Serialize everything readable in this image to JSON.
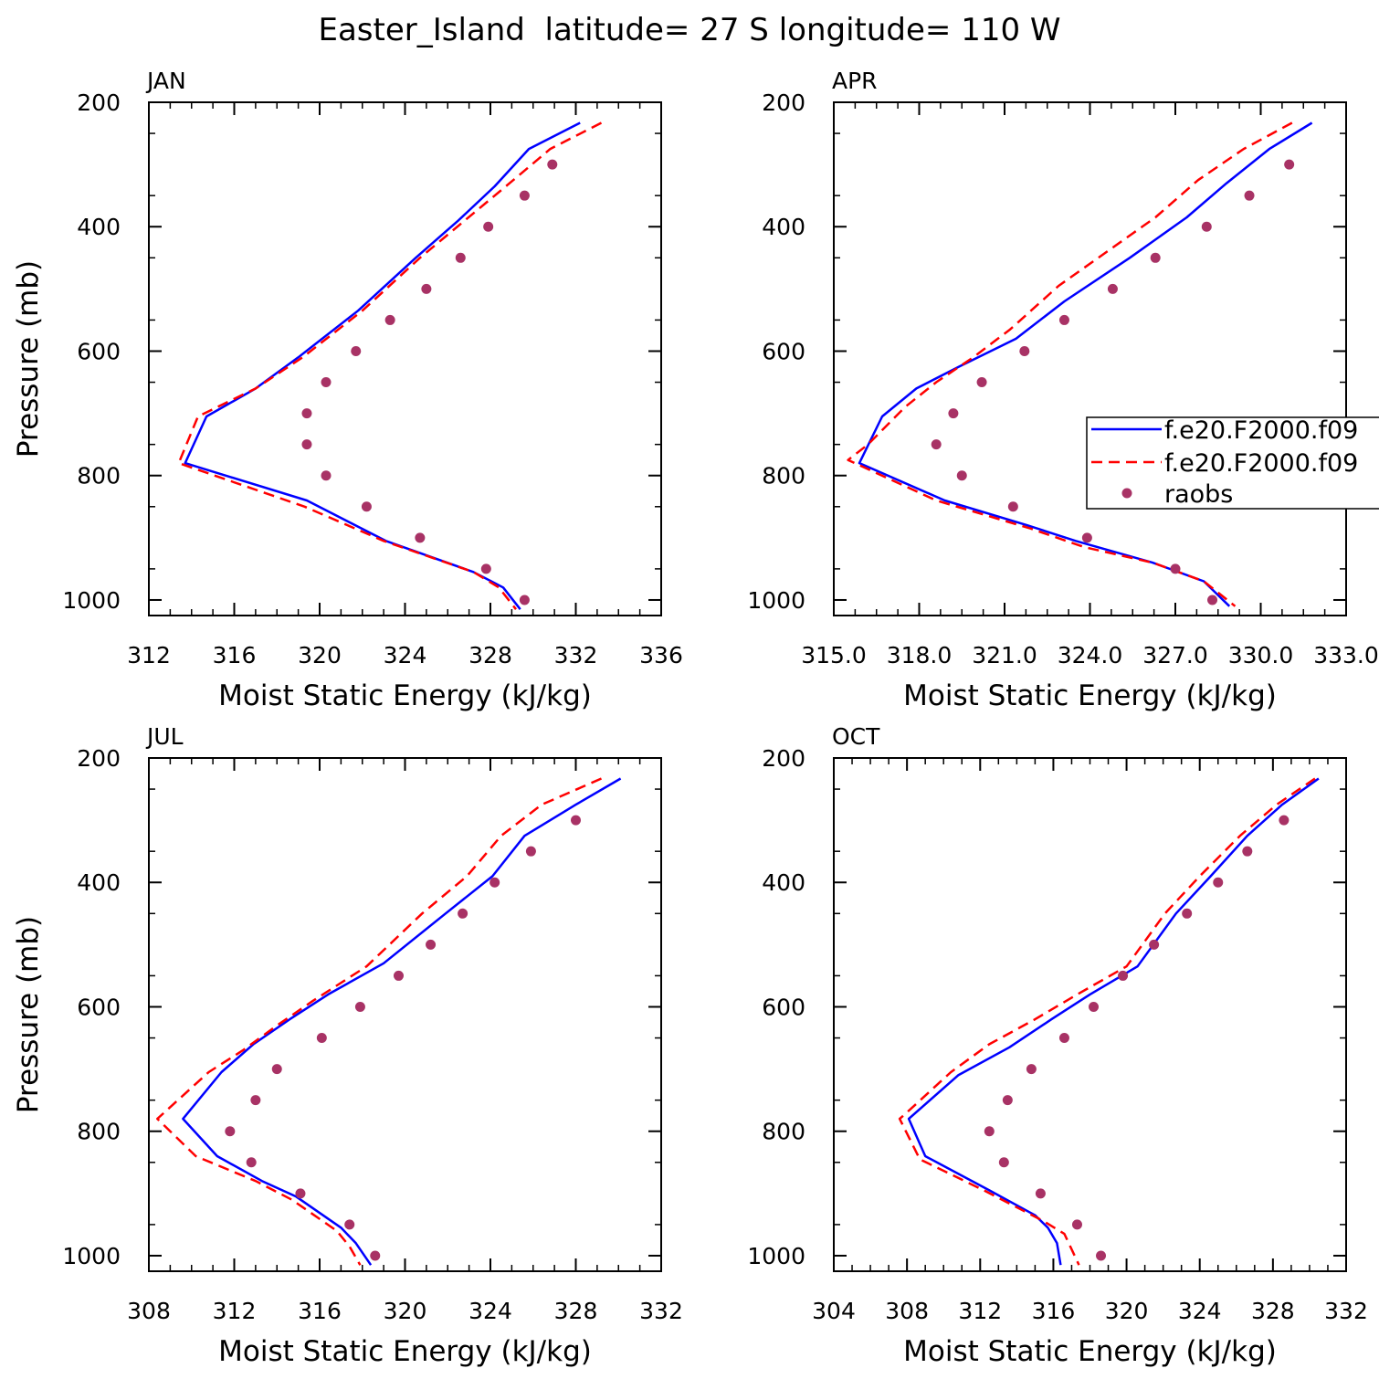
{
  "figure_title": "Easter_Island  latitude= 27 S longitude= 110 W",
  "colors": {
    "model1": "#0000ff",
    "model2": "#ff0000",
    "obs": "#a83265"
  },
  "legend": {
    "entries": [
      "f.e20.F2000.f09",
      "f.e20.F2000.f09",
      "raobs"
    ],
    "placement": "APR panel, right edge (clipped)"
  },
  "chart_data": [
    {
      "type": "line",
      "title": "JAN",
      "xlabel": "Moist Static Energy (kJ/kg)",
      "ylabel": "Pressure (mb)",
      "xlim": [
        312,
        336
      ],
      "xticks": [
        "312",
        "316",
        "320",
        "324",
        "328",
        "332",
        "336"
      ],
      "ylim": [
        1025,
        200
      ],
      "yticks": [
        "200",
        "400",
        "600",
        "800",
        "1000"
      ],
      "grid": false,
      "series": [
        {
          "name": "f.e20.F2000.f09",
          "style": "solid",
          "points": [
            [
              332.2,
              233
            ],
            [
              329.8,
              275
            ],
            [
              328.2,
              335
            ],
            [
              326.5,
              390
            ],
            [
              324.5,
              450
            ],
            [
              321.8,
              535
            ],
            [
              319.0,
              610
            ],
            [
              317.0,
              660
            ],
            [
              314.7,
              705
            ],
            [
              313.7,
              780
            ],
            [
              319.4,
              840
            ],
            [
              323.1,
              905
            ],
            [
              327.2,
              955
            ],
            [
              328.6,
              980
            ],
            [
              329.4,
              1015
            ]
          ]
        },
        {
          "name": "f.e20.F2000.f09",
          "style": "dashed",
          "points": [
            [
              333.2,
              233
            ],
            [
              330.8,
              275
            ],
            [
              328.9,
              330
            ],
            [
              326.8,
              390
            ],
            [
              324.7,
              450
            ],
            [
              322.0,
              535
            ],
            [
              319.2,
              610
            ],
            [
              317.0,
              660
            ],
            [
              314.3,
              705
            ],
            [
              313.4,
              780
            ],
            [
              319.3,
              850
            ],
            [
              323.0,
              905
            ],
            [
              327.2,
              955
            ],
            [
              328.4,
              980
            ],
            [
              329.2,
              1015
            ]
          ]
        },
        {
          "name": "raobs",
          "style": "dots",
          "points": [
            [
              330.9,
              300
            ],
            [
              329.6,
              350
            ],
            [
              327.9,
              400
            ],
            [
              326.6,
              450
            ],
            [
              325.0,
              500
            ],
            [
              323.3,
              550
            ],
            [
              321.7,
              600
            ],
            [
              320.3,
              650
            ],
            [
              319.4,
              700
            ],
            [
              319.4,
              750
            ],
            [
              320.3,
              800
            ],
            [
              322.2,
              850
            ],
            [
              324.7,
              900
            ],
            [
              327.8,
              950
            ],
            [
              329.6,
              1000
            ]
          ]
        }
      ]
    },
    {
      "type": "line",
      "title": "APR",
      "xlabel": "Moist Static Energy (kJ/kg)",
      "ylabel": "",
      "xlim": [
        315,
        333
      ],
      "xticks": [
        "315.0",
        "318.0",
        "321.0",
        "324.0",
        "327.0",
        "330.0",
        "333.0"
      ],
      "ylim": [
        1025,
        200
      ],
      "yticks": [
        "200",
        "400",
        "600",
        "800",
        "1000"
      ],
      "grid": false,
      "series": [
        {
          "name": "f.e20.F2000.f09",
          "style": "solid",
          "points": [
            [
              331.8,
              233
            ],
            [
              330.3,
              275
            ],
            [
              328.8,
              330
            ],
            [
              327.4,
              385
            ],
            [
              325.4,
              450
            ],
            [
              323.1,
              520
            ],
            [
              321.4,
              580
            ],
            [
              319.4,
              625
            ],
            [
              317.9,
              660
            ],
            [
              316.7,
              705
            ],
            [
              315.9,
              780
            ],
            [
              318.9,
              840
            ],
            [
              321.8,
              880
            ],
            [
              323.5,
              905
            ],
            [
              326.2,
              940
            ],
            [
              328.0,
              970
            ],
            [
              328.9,
              1010
            ]
          ]
        },
        {
          "name": "f.e20.F2000.f09",
          "style": "dashed",
          "points": [
            [
              331.1,
              233
            ],
            [
              329.4,
              275
            ],
            [
              327.8,
              325
            ],
            [
              326.3,
              385
            ],
            [
              324.6,
              440
            ],
            [
              322.9,
              495
            ],
            [
              321.2,
              565
            ],
            [
              319.9,
              610
            ],
            [
              318.6,
              650
            ],
            [
              317.5,
              690
            ],
            [
              316.2,
              750
            ],
            [
              315.5,
              775
            ],
            [
              318.6,
              840
            ],
            [
              321.9,
              885
            ],
            [
              323.8,
              915
            ],
            [
              326.2,
              940
            ],
            [
              328.0,
              970
            ],
            [
              329.1,
              1010
            ]
          ]
        },
        {
          "name": "raobs",
          "style": "dots",
          "points": [
            [
              331.0,
              300
            ],
            [
              329.6,
              350
            ],
            [
              328.1,
              400
            ],
            [
              326.3,
              450
            ],
            [
              324.8,
              500
            ],
            [
              323.1,
              550
            ],
            [
              321.7,
              600
            ],
            [
              320.2,
              650
            ],
            [
              319.2,
              700
            ],
            [
              318.6,
              750
            ],
            [
              319.5,
              800
            ],
            [
              321.3,
              850
            ],
            [
              323.9,
              900
            ],
            [
              327.0,
              950
            ],
            [
              328.3,
              1000
            ]
          ]
        }
      ]
    },
    {
      "type": "line",
      "title": "JUL",
      "xlabel": "Moist Static Energy (kJ/kg)",
      "ylabel": "Pressure (mb)",
      "xlim": [
        308,
        332
      ],
      "xticks": [
        "308",
        "312",
        "316",
        "320",
        "324",
        "328",
        "332"
      ],
      "ylim": [
        1025,
        200
      ],
      "yticks": [
        "200",
        "400",
        "600",
        "800",
        "1000"
      ],
      "grid": false,
      "series": [
        {
          "name": "f.e20.F2000.f09",
          "style": "solid",
          "points": [
            [
              330.1,
              233
            ],
            [
              328.0,
              275
            ],
            [
              325.6,
              325
            ],
            [
              324.1,
              390
            ],
            [
              321.9,
              450
            ],
            [
              319.0,
              530
            ],
            [
              316.4,
              580
            ],
            [
              314.6,
              620
            ],
            [
              312.9,
              660
            ],
            [
              311.4,
              705
            ],
            [
              309.6,
              780
            ],
            [
              311.2,
              840
            ],
            [
              313.3,
              880
            ],
            [
              314.9,
              905
            ],
            [
              317.0,
              955
            ],
            [
              317.7,
              980
            ],
            [
              318.4,
              1015
            ]
          ]
        },
        {
          "name": "f.e20.F2000.f09",
          "style": "dashed",
          "points": [
            [
              329.2,
              233
            ],
            [
              326.4,
              275
            ],
            [
              324.5,
              325
            ],
            [
              322.9,
              390
            ],
            [
              320.8,
              450
            ],
            [
              318.2,
              535
            ],
            [
              315.7,
              590
            ],
            [
              314.0,
              630
            ],
            [
              312.4,
              670
            ],
            [
              310.8,
              705
            ],
            [
              308.4,
              780
            ],
            [
              310.2,
              840
            ],
            [
              313.0,
              880
            ],
            [
              314.7,
              910
            ],
            [
              316.8,
              960
            ],
            [
              317.4,
              985
            ],
            [
              317.9,
              1015
            ]
          ]
        },
        {
          "name": "raobs",
          "style": "dots",
          "points": [
            [
              328.0,
              300
            ],
            [
              325.9,
              350
            ],
            [
              324.2,
              400
            ],
            [
              322.7,
              450
            ],
            [
              321.2,
              500
            ],
            [
              319.7,
              550
            ],
            [
              317.9,
              600
            ],
            [
              316.1,
              650
            ],
            [
              314.0,
              700
            ],
            [
              313.0,
              750
            ],
            [
              311.8,
              800
            ],
            [
              312.8,
              850
            ],
            [
              315.1,
              900
            ],
            [
              317.4,
              950
            ],
            [
              318.6,
              1000
            ]
          ]
        }
      ]
    },
    {
      "type": "line",
      "title": "OCT",
      "xlabel": "Moist Static Energy (kJ/kg)",
      "ylabel": "",
      "xlim": [
        304,
        332
      ],
      "xticks": [
        "304",
        "308",
        "312",
        "316",
        "320",
        "324",
        "328",
        "332"
      ],
      "ylim": [
        1025,
        200
      ],
      "yticks": [
        "200",
        "400",
        "600",
        "800",
        "1000"
      ],
      "grid": false,
      "series": [
        {
          "name": "f.e20.F2000.f09",
          "style": "solid",
          "points": [
            [
              330.5,
              233
            ],
            [
              328.5,
              275
            ],
            [
              326.6,
              325
            ],
            [
              324.6,
              390
            ],
            [
              322.7,
              450
            ],
            [
              320.6,
              535
            ],
            [
              318.0,
              580
            ],
            [
              315.9,
              620
            ],
            [
              313.6,
              665
            ],
            [
              310.8,
              710
            ],
            [
              308.1,
              780
            ],
            [
              309.0,
              840
            ],
            [
              312.5,
              895
            ],
            [
              315.0,
              935
            ],
            [
              315.7,
              955
            ],
            [
              316.2,
              980
            ],
            [
              316.4,
              1015
            ]
          ]
        },
        {
          "name": "f.e20.F2000.f09",
          "style": "dashed",
          "points": [
            [
              330.3,
              233
            ],
            [
              328.2,
              275
            ],
            [
              326.2,
              325
            ],
            [
              324.0,
              390
            ],
            [
              322.1,
              450
            ],
            [
              320.0,
              535
            ],
            [
              317.3,
              580
            ],
            [
              315.0,
              620
            ],
            [
              312.5,
              660
            ],
            [
              310.4,
              705
            ],
            [
              307.8,
              775
            ],
            [
              307.6,
              780
            ],
            [
              308.7,
              845
            ],
            [
              312.2,
              895
            ],
            [
              315.5,
              945
            ],
            [
              316.6,
              965
            ],
            [
              317.4,
              1015
            ]
          ]
        },
        {
          "name": "raobs",
          "style": "dots",
          "points": [
            [
              328.6,
              300
            ],
            [
              326.6,
              350
            ],
            [
              325.0,
              400
            ],
            [
              323.3,
              450
            ],
            [
              321.5,
              500
            ],
            [
              319.8,
              550
            ],
            [
              318.2,
              600
            ],
            [
              316.6,
              650
            ],
            [
              314.8,
              700
            ],
            [
              313.5,
              750
            ],
            [
              312.5,
              800
            ],
            [
              313.3,
              850
            ],
            [
              315.3,
              900
            ],
            [
              317.3,
              950
            ],
            [
              318.6,
              1000
            ]
          ]
        }
      ]
    }
  ]
}
